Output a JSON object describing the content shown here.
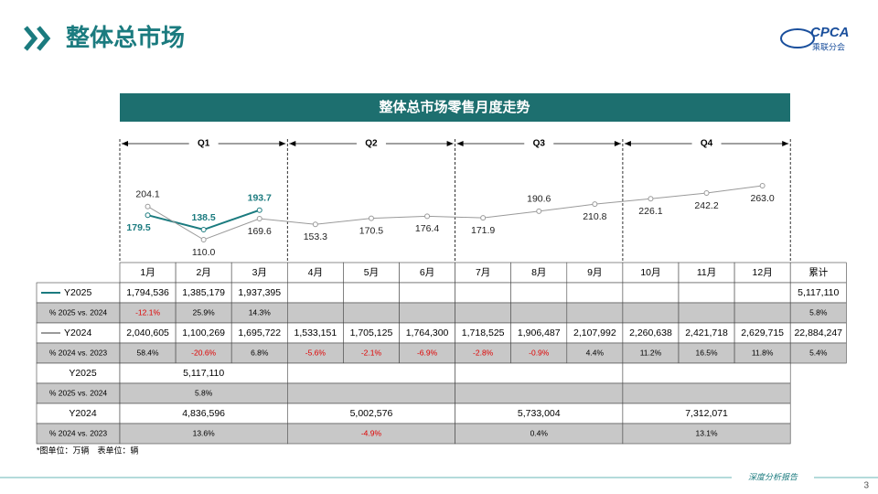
{
  "header": {
    "title": "整体总市场",
    "logo": "CPCA",
    "logo_sub": "乘联分会"
  },
  "chart_data": {
    "type": "line",
    "title": "整体总市场零售月度走势",
    "quarters": [
      "Q1",
      "Q2",
      "Q3",
      "Q4"
    ],
    "categories": [
      "1月",
      "2月",
      "3月",
      "4月",
      "5月",
      "6月",
      "7月",
      "8月",
      "9月",
      "10月",
      "11月",
      "12月"
    ],
    "series": [
      {
        "name": "Y2025",
        "color": "#1b7b7f",
        "values": [
          179.5,
          138.5,
          193.7,
          null,
          null,
          null,
          null,
          null,
          null,
          null,
          null,
          null
        ],
        "value_labels": [
          "179.5",
          "138.5",
          "193.7",
          null,
          null,
          null,
          null,
          null,
          null,
          null,
          null,
          null
        ]
      },
      {
        "name": "Y2024",
        "color": "#9a9a9a",
        "values": [
          204.1,
          110.0,
          169.6,
          153.3,
          170.5,
          176.4,
          171.9,
          190.6,
          210.8,
          226.1,
          242.2,
          263.0
        ],
        "value_labels": [
          "204.1",
          "110.0",
          "169.6",
          "153.3",
          "170.5",
          "176.4",
          "171.9",
          "190.6",
          "210.8",
          "226.1",
          "242.2",
          "263.0"
        ]
      }
    ]
  },
  "table": {
    "total_header": "累计",
    "rows": [
      {
        "label": "Y2025",
        "cells": [
          "1,794,536",
          "1,385,179",
          "1,937,395",
          null,
          null,
          null,
          null,
          null,
          null,
          null,
          null,
          null,
          "5,117,110"
        ]
      },
      {
        "label": "% 2025 vs. 2024",
        "cells": [
          "-12.1%",
          "25.9%",
          "14.3%",
          null,
          null,
          null,
          null,
          null,
          null,
          null,
          null,
          null,
          "5.8%"
        ]
      },
      {
        "label": "Y2024",
        "cells": [
          "2,040,605",
          "1,100,269",
          "1,695,722",
          "1,533,151",
          "1,705,125",
          "1,764,300",
          "1,718,525",
          "1,906,487",
          "2,107,992",
          "2,260,638",
          "2,421,718",
          "2,629,715",
          "22,884,247"
        ]
      },
      {
        "label": "% 2024 vs. 2023",
        "cells": [
          "58.4%",
          "-20.6%",
          "6.8%",
          "-5.6%",
          "-2.1%",
          "-6.9%",
          "-2.8%",
          "-0.9%",
          "4.4%",
          "11.2%",
          "16.5%",
          "11.8%",
          "5.4%"
        ]
      }
    ],
    "quarter_rows": [
      {
        "label": "Y2025",
        "cells": [
          "5,117,110",
          null,
          null,
          null
        ]
      },
      {
        "label": "% 2025 vs. 2024",
        "cells": [
          "5.8%",
          null,
          null,
          null
        ]
      },
      {
        "label": "Y2024",
        "cells": [
          "4,836,596",
          "5,002,576",
          "5,733,004",
          "7,312,071"
        ]
      },
      {
        "label": "% 2024 vs. 2023",
        "cells": [
          "13.6%",
          "-4.9%",
          "0.4%",
          "13.1%"
        ]
      }
    ]
  },
  "footnote": "*图单位：万辆　表单位：辆",
  "footer": {
    "report": "深度分析报告",
    "page": "3"
  }
}
